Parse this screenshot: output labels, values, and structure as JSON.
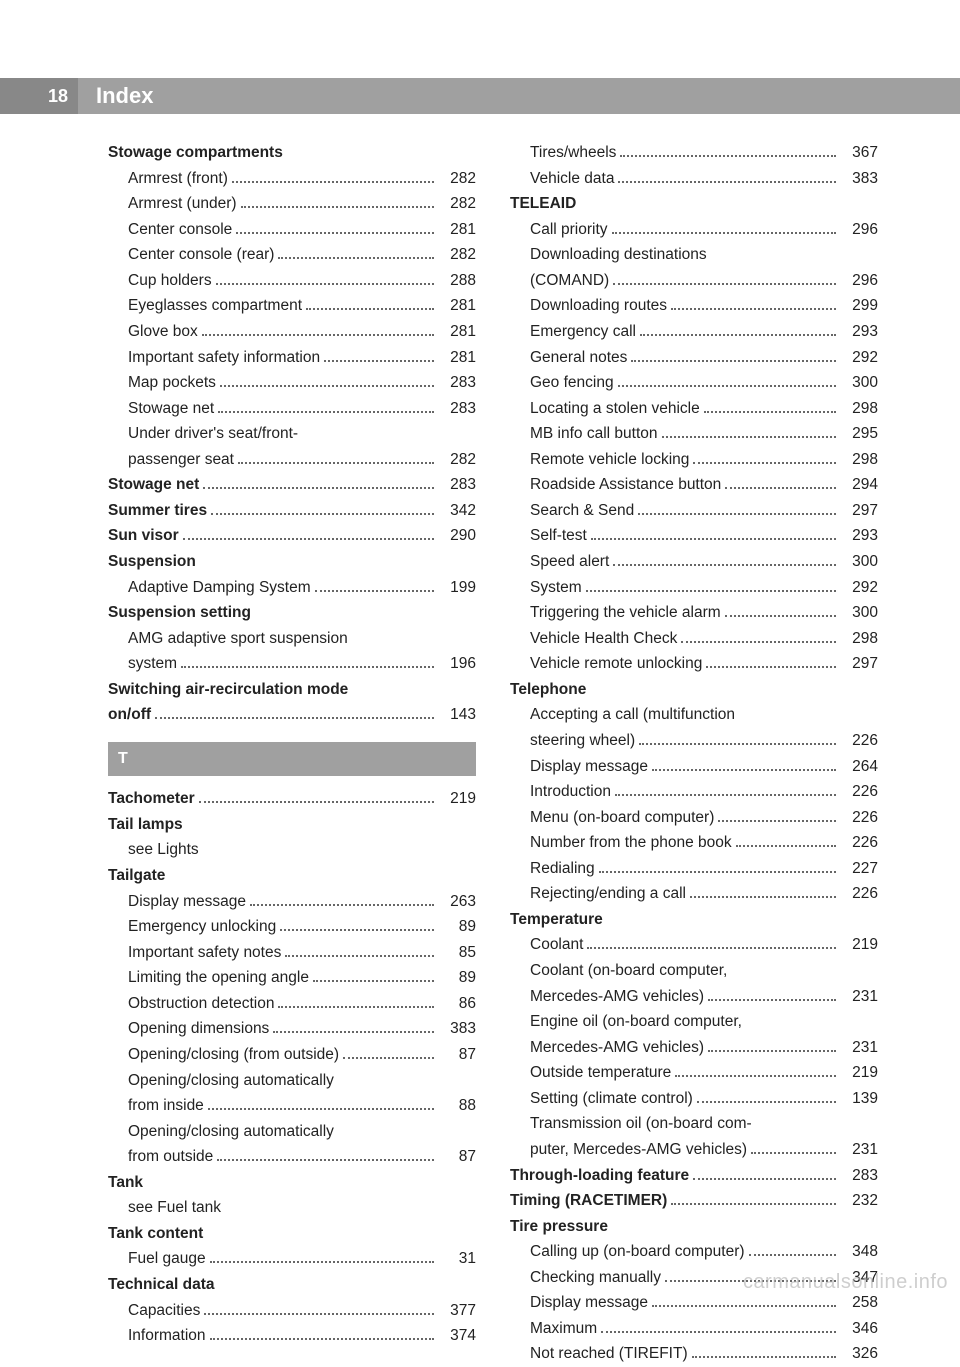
{
  "header": {
    "page_number": "18",
    "title": "Index"
  },
  "section_letter": "T",
  "watermark": "carmanualsonline.info",
  "left_col": [
    {
      "label": "Stowage compartments",
      "bold": true,
      "indent": 0
    },
    {
      "label": "Armrest (front)",
      "page": "282",
      "indent": 1
    },
    {
      "label": "Armrest (under)",
      "page": "282",
      "indent": 1
    },
    {
      "label": "Center console",
      "page": "281",
      "indent": 1
    },
    {
      "label": "Center console (rear)",
      "page": "282",
      "indent": 1
    },
    {
      "label": "Cup holders",
      "page": "288",
      "indent": 1
    },
    {
      "label": "Eyeglasses compartment",
      "page": "281",
      "indent": 1
    },
    {
      "label": "Glove box",
      "page": "281",
      "indent": 1
    },
    {
      "label": "Important safety information",
      "page": "281",
      "indent": 1
    },
    {
      "label": "Map pockets",
      "page": "283",
      "indent": 1
    },
    {
      "label": "Stowage net",
      "page": "283",
      "indent": 1
    },
    {
      "label": "Under driver's seat/front-",
      "indent": 1
    },
    {
      "label": "passenger seat",
      "page": "282",
      "indent": 1
    },
    {
      "label": "Stowage net",
      "page": "283",
      "bold": true,
      "indent": 0
    },
    {
      "label": "Summer tires",
      "page": "342",
      "bold": true,
      "indent": 0
    },
    {
      "label": "Sun visor",
      "page": "290",
      "bold": true,
      "indent": 0
    },
    {
      "label": "Suspension",
      "bold": true,
      "indent": 0
    },
    {
      "label": "Adaptive Damping System",
      "page": "199",
      "indent": 1
    },
    {
      "label": "Suspension setting",
      "bold": true,
      "indent": 0
    },
    {
      "label": "AMG adaptive sport suspension",
      "indent": 1
    },
    {
      "label": "system",
      "page": "196",
      "indent": 1
    },
    {
      "label": "Switching air-recirculation mode",
      "bold": true,
      "indent": 0
    },
    {
      "label": "on/off",
      "page": "143",
      "bold": true,
      "indent": 0
    },
    {
      "section": true
    },
    {
      "label": "Tachometer",
      "page": "219",
      "bold": true,
      "indent": 0
    },
    {
      "label": "Tail lamps",
      "bold": true,
      "indent": 0
    },
    {
      "label": "see Lights",
      "indent": 1
    },
    {
      "label": "Tailgate",
      "bold": true,
      "indent": 0
    },
    {
      "label": "Display message",
      "page": "263",
      "indent": 1
    },
    {
      "label": "Emergency unlocking",
      "page": "89",
      "indent": 1
    },
    {
      "label": "Important safety notes",
      "page": "85",
      "indent": 1
    },
    {
      "label": "Limiting the opening angle",
      "page": "89",
      "indent": 1
    },
    {
      "label": "Obstruction detection",
      "page": "86",
      "indent": 1
    },
    {
      "label": "Opening dimensions",
      "page": "383",
      "indent": 1
    },
    {
      "label": "Opening/closing (from outside)",
      "page": "87",
      "indent": 1
    },
    {
      "label": "Opening/closing automatically",
      "indent": 1
    },
    {
      "label": "from inside",
      "page": "88",
      "indent": 1
    },
    {
      "label": "Opening/closing automatically",
      "indent": 1
    },
    {
      "label": "from outside",
      "page": "87",
      "indent": 1
    },
    {
      "label": "Tank",
      "bold": true,
      "indent": 0
    },
    {
      "label": "see Fuel tank",
      "indent": 1
    },
    {
      "label": "Tank content",
      "bold": true,
      "indent": 0
    },
    {
      "label": "Fuel gauge",
      "page": "31",
      "indent": 1
    },
    {
      "label": "Technical data",
      "bold": true,
      "indent": 0
    },
    {
      "label": "Capacities",
      "page": "377",
      "indent": 1
    },
    {
      "label": "Information",
      "page": "374",
      "indent": 1
    }
  ],
  "right_col": [
    {
      "label": "Tires/wheels",
      "page": "367",
      "indent": 1
    },
    {
      "label": "Vehicle data",
      "page": "383",
      "indent": 1
    },
    {
      "label": "TELEAID",
      "bold": true,
      "indent": 0
    },
    {
      "label": "Call priority",
      "page": "296",
      "indent": 1
    },
    {
      "label": "Downloading destinations",
      "indent": 1
    },
    {
      "label": "(COMAND)",
      "page": "296",
      "indent": 1
    },
    {
      "label": "Downloading routes",
      "page": "299",
      "indent": 1
    },
    {
      "label": "Emergency call",
      "page": "293",
      "indent": 1
    },
    {
      "label": "General notes",
      "page": "292",
      "indent": 1
    },
    {
      "label": "Geo fencing",
      "page": "300",
      "indent": 1
    },
    {
      "label": "Locating a stolen vehicle",
      "page": "298",
      "indent": 1
    },
    {
      "label": "MB info call button",
      "page": "295",
      "indent": 1
    },
    {
      "label": "Remote vehicle locking",
      "page": "298",
      "indent": 1
    },
    {
      "label": "Roadside Assistance button",
      "page": "294",
      "indent": 1
    },
    {
      "label": "Search & Send",
      "page": "297",
      "indent": 1
    },
    {
      "label": "Self-test",
      "page": "293",
      "indent": 1
    },
    {
      "label": "Speed alert",
      "page": "300",
      "indent": 1
    },
    {
      "label": "System",
      "page": "292",
      "indent": 1
    },
    {
      "label": "Triggering the vehicle alarm",
      "page": "300",
      "indent": 1
    },
    {
      "label": "Vehicle Health Check",
      "page": "298",
      "indent": 1
    },
    {
      "label": "Vehicle remote unlocking",
      "page": "297",
      "indent": 1
    },
    {
      "label": "Telephone",
      "bold": true,
      "indent": 0
    },
    {
      "label": "Accepting a call (multifunction",
      "indent": 1
    },
    {
      "label": "steering wheel)",
      "page": "226",
      "indent": 1
    },
    {
      "label": "Display message",
      "page": "264",
      "indent": 1
    },
    {
      "label": "Introduction",
      "page": "226",
      "indent": 1
    },
    {
      "label": "Menu (on-board computer)",
      "page": "226",
      "indent": 1
    },
    {
      "label": "Number from the phone book",
      "page": "226",
      "indent": 1
    },
    {
      "label": "Redialing",
      "page": "227",
      "indent": 1
    },
    {
      "label": "Rejecting/ending a call",
      "page": "226",
      "indent": 1
    },
    {
      "label": "Temperature",
      "bold": true,
      "indent": 0
    },
    {
      "label": "Coolant",
      "page": "219",
      "indent": 1
    },
    {
      "label": "Coolant (on-board computer,",
      "indent": 1
    },
    {
      "label": "Mercedes-AMG vehicles)",
      "page": "231",
      "indent": 1
    },
    {
      "label": "Engine oil (on-board computer,",
      "indent": 1
    },
    {
      "label": "Mercedes-AMG vehicles)",
      "page": "231",
      "indent": 1
    },
    {
      "label": "Outside temperature",
      "page": "219",
      "indent": 1
    },
    {
      "label": "Setting (climate control)",
      "page": "139",
      "indent": 1
    },
    {
      "label": "Transmission oil (on-board com-",
      "indent": 1
    },
    {
      "label": "puter, Mercedes-AMG vehicles)",
      "page": "231",
      "indent": 1
    },
    {
      "label": "Through-loading feature",
      "page": "283",
      "bold": true,
      "indent": 0
    },
    {
      "label": "Timing (RACETIMER)",
      "page": "232",
      "bold": true,
      "indent": 0
    },
    {
      "label": "Tire pressure",
      "bold": true,
      "indent": 0
    },
    {
      "label": "Calling up (on-board computer)",
      "page": "348",
      "indent": 1
    },
    {
      "label": "Checking manually",
      "page": "347",
      "indent": 1
    },
    {
      "label": "Display message",
      "page": "258",
      "indent": 1
    },
    {
      "label": "Maximum",
      "page": "346",
      "indent": 1
    },
    {
      "label": "Not reached (TIREFIT)",
      "page": "326",
      "indent": 1
    }
  ]
}
